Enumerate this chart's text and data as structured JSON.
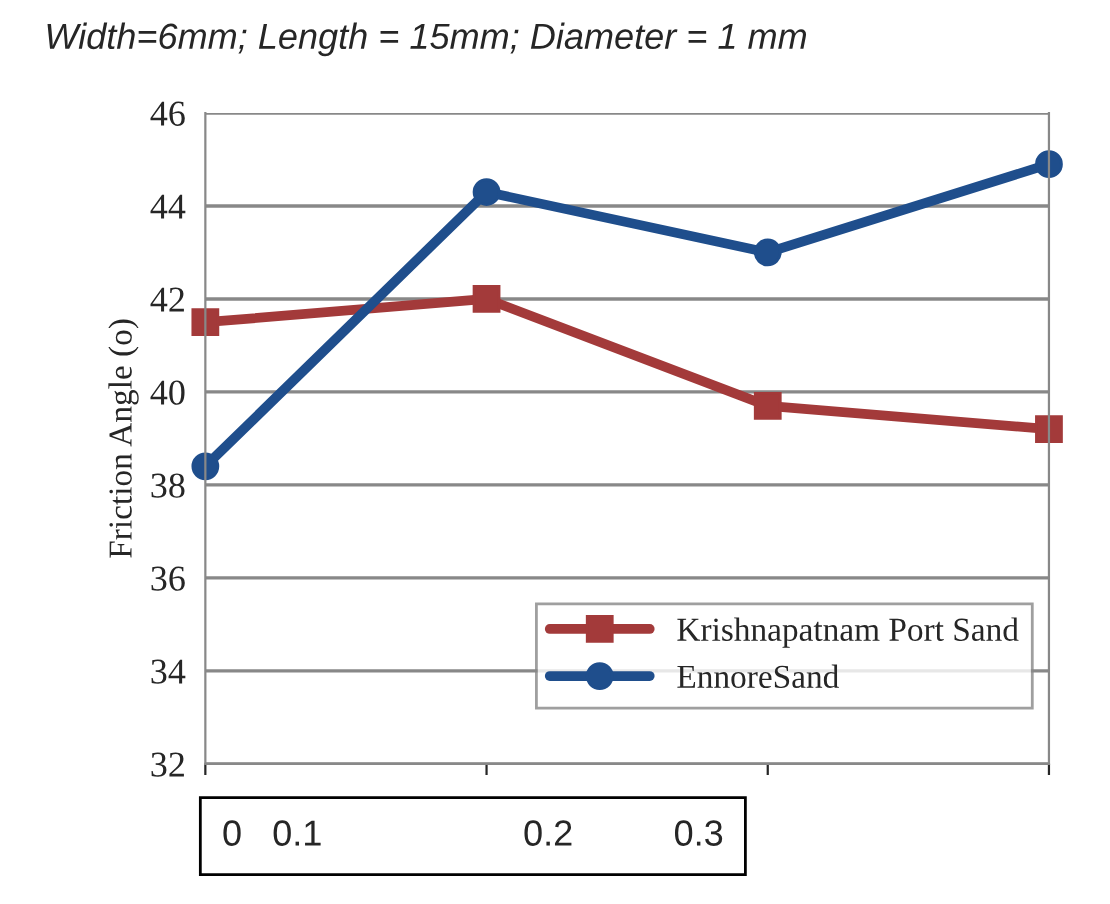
{
  "chart_data": {
    "type": "line",
    "title": "Width=6mm; Length = 15mm; Diameter = 1 mm",
    "ylabel": "Friction Angle (o)",
    "categories": [
      null,
      null,
      null,
      null
    ],
    "series": [
      {
        "name": "Krishnapatnam Port Sand",
        "color": "#a33a3a",
        "marker": "square",
        "values": [
          41.5,
          42.0,
          39.7,
          39.2
        ]
      },
      {
        "name": "EnnoreSand",
        "color": "#1f4e8c",
        "marker": "circle",
        "values": [
          38.4,
          44.3,
          43.0,
          44.9
        ]
      }
    ],
    "ylim": [
      32,
      46
    ],
    "yticks": [
      32,
      34,
      36,
      38,
      40,
      42,
      44,
      46
    ],
    "grid": "y",
    "legend": "bottom right",
    "annotations": [
      "0   0.1                    0.2          0.3"
    ]
  }
}
